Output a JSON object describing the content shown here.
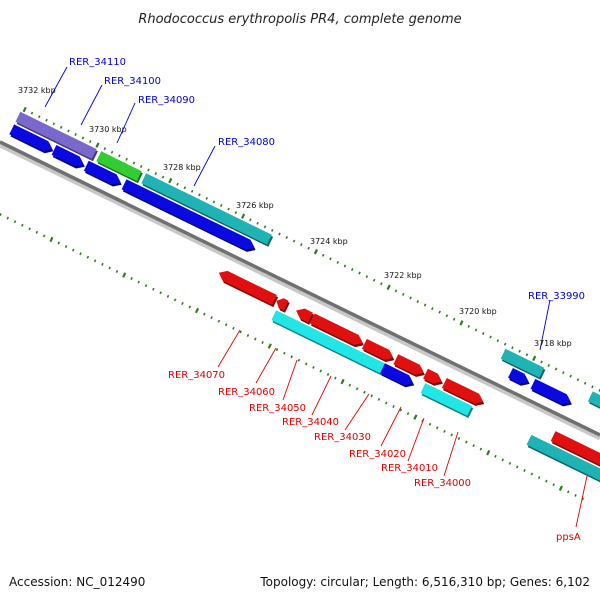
{
  "title": "Rhodococcus erythropolis PR4, complete genome",
  "footer": {
    "accession": "Accession: NC_012490",
    "summary": "Topology: circular; Length: 6,516,310 bp; Genes: 6,102"
  },
  "colors": {
    "backbone": "#7a7a7a",
    "tick": "#2e7d1a",
    "blue_label": "#0000cc",
    "red_label": "#dd0000",
    "purple": "#7b68cc",
    "green": "#33cc33",
    "teal": "#1fb3b3",
    "blue": "#0a0ae0",
    "red": "#e01010",
    "cyan": "#22e5e5"
  },
  "kbp_labels": [
    "3732 kbp",
    "3730 kbp",
    "3728 kbp",
    "3726 kbp",
    "3724 kbp",
    "3722 kbp",
    "3720 kbp",
    "3718 kbp"
  ],
  "top_genes": [
    "RER_34110",
    "RER_34100",
    "RER_34090",
    "RER_34080",
    "RER_33990"
  ],
  "bottom_genes": [
    "RER_34070",
    "RER_34060",
    "RER_34050",
    "RER_34040",
    "RER_34030",
    "RER_34020",
    "RER_34010",
    "RER_34000",
    "ppsA"
  ]
}
